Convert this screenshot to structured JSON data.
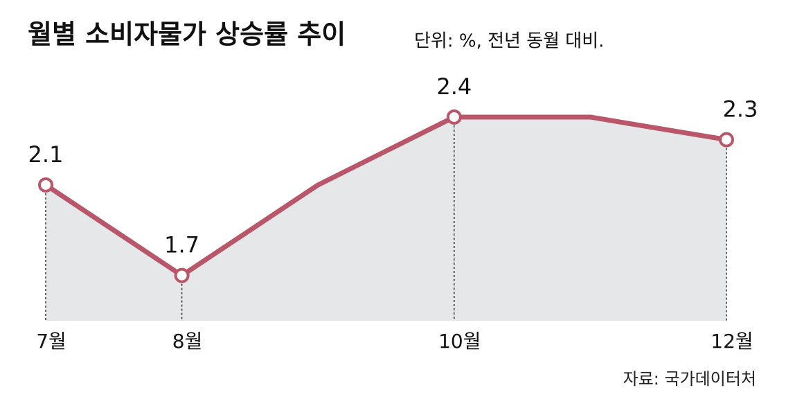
{
  "chart_data": {
    "type": "line",
    "title": "월별 소비자물가 상승률 추이",
    "subtitle": "단위: %, 전년 동월 대비.",
    "source": "자료: 국가데이터처",
    "categories": [
      "7월",
      "8월",
      null,
      "10월",
      null,
      "12월"
    ],
    "values": [
      2.1,
      1.7,
      2.1,
      2.4,
      2.4,
      2.3
    ],
    "value_labels": [
      "2.1",
      "1.7",
      null,
      "2.4",
      null,
      "2.3"
    ],
    "color": "#b9566a",
    "area_color": "#e6e7e9",
    "ylim": [
      1.5,
      2.6
    ]
  }
}
